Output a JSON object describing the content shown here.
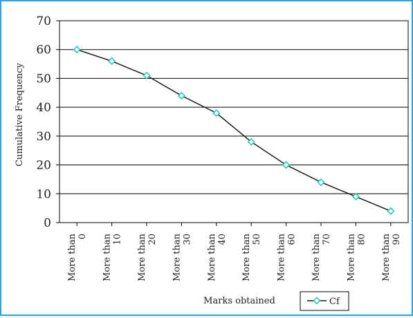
{
  "chart_data": {
    "type": "line",
    "title": "",
    "xlabel": "Marks obtained",
    "ylabel": "Cumulative Frequency",
    "ylim": [
      0,
      70
    ],
    "yticks": [
      "0",
      "10",
      "20",
      "30",
      "40",
      "50",
      "60",
      "70"
    ],
    "grid": true,
    "legend_position": "bottom-right",
    "categories": [
      [
        "More than",
        "0"
      ],
      [
        "More than",
        "10"
      ],
      [
        "More than",
        "20"
      ],
      [
        "More than",
        "30"
      ],
      [
        "More than",
        "40"
      ],
      [
        "More than",
        "50"
      ],
      [
        "More than",
        "60"
      ],
      [
        "More than",
        "70"
      ],
      [
        "More than",
        "80"
      ],
      [
        "More than",
        "90"
      ]
    ],
    "series": [
      {
        "name": "Cf",
        "values": [
          60,
          56,
          51,
          44,
          38,
          28,
          20,
          14,
          9,
          4
        ]
      }
    ],
    "colors": {
      "line": "#1a1a1a",
      "marker": "#1ec8b4",
      "frame": "#2aa4dc",
      "grid": "#000000"
    }
  }
}
